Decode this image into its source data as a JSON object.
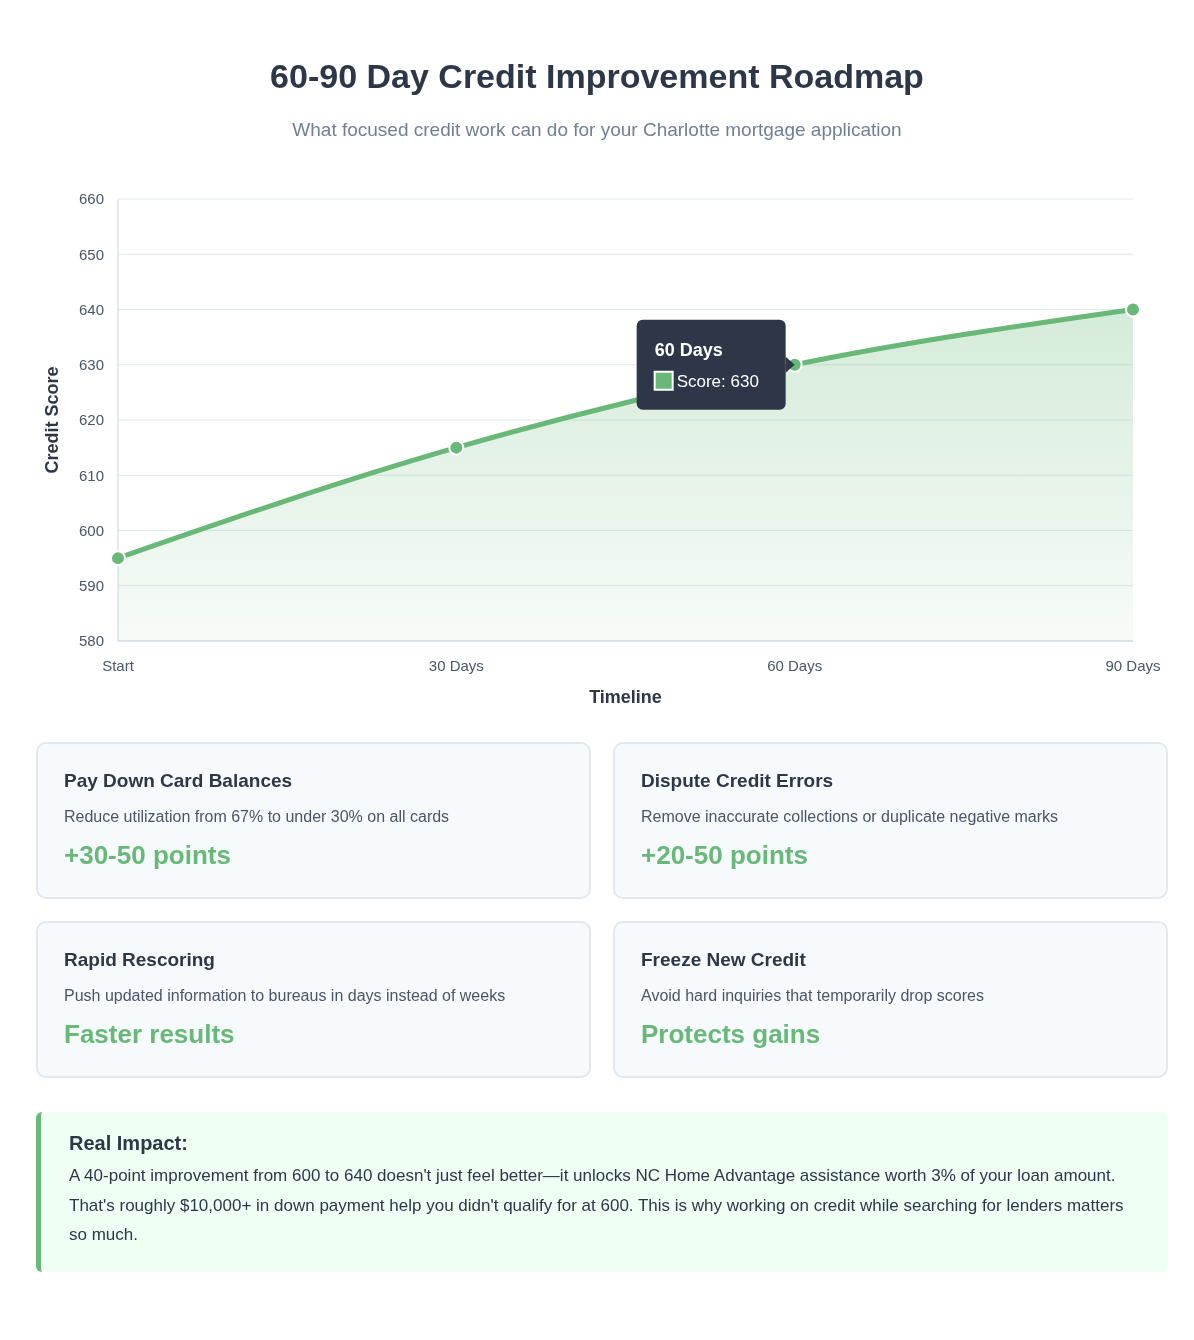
{
  "chart_data": [
    {
      "type": "area",
      "title": "60-90 Day Credit Improvement Roadmap",
      "subtitle": "What focused credit work can do for your Charlotte mortgage application",
      "xlabel": "Timeline",
      "ylabel": "Credit Score",
      "categories": [
        "Start",
        "30 Days",
        "60 Days",
        "90 Days"
      ],
      "series": [
        {
          "color": "#68b878",
          "values": [
            595,
            615,
            630,
            640
          ]
        }
      ],
      "ylim": [
        580,
        660
      ],
      "yticks": [
        580,
        590,
        600,
        610,
        620,
        630,
        640,
        650,
        660
      ],
      "grid": "y",
      "marker": "circle",
      "annotations": [
        {
          "text": "60 Days\nScore: 630",
          "x": "60 Days",
          "y": 630
        }
      ]
    },
    {
      "type": "other",
      "title": "Pay Down Card Balances",
      "subtitle": "Reduce utilization from 67% to under 30% on all cards",
      "annotations": [
        "+30-50 points"
      ]
    },
    {
      "type": "other",
      "title": "Dispute Credit Errors",
      "subtitle": "Remove inaccurate collections or duplicate negative marks",
      "annotations": [
        "+20-50 points"
      ]
    },
    {
      "type": "other",
      "title": "Rapid Rescoring",
      "subtitle": "Push updated information to bureaus in days instead of weeks",
      "annotations": [
        "Faster results"
      ]
    },
    {
      "type": "other",
      "title": "Freeze New Credit",
      "subtitle": "Avoid hard inquiries that temporarily drop scores",
      "annotations": [
        "Protects gains"
      ]
    },
    {
      "type": "other",
      "title": "Real Impact:",
      "annotations": [
        "A 40-point improvement from 600 to 640 doesn't just feel better—it unlocks NC Home Advantage assistance worth 3% of your loan amount. That's roughly $10,000+ in down payment help you didn't qualify for at 600. This is why working on credit while searching for lenders matters so much."
      ]
    }
  ]
}
